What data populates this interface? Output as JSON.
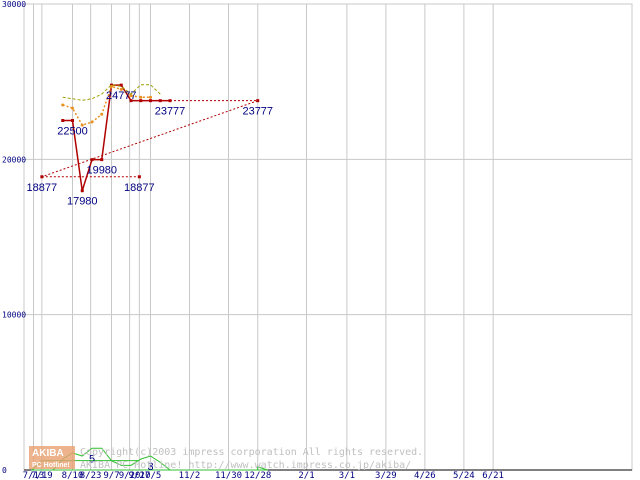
{
  "chart_data": {
    "type": "line",
    "title": "",
    "xlabel": "",
    "ylabel": "",
    "ylim": [
      0,
      30000
    ],
    "grid": true,
    "y_ticks": [
      "30000",
      "20000",
      "10000",
      "0"
    ],
    "x_ticks": [
      "7/13",
      "8/10",
      "9/7",
      "10/5",
      "11/2",
      "11/30",
      "12/28",
      "2/1",
      "3/1",
      "3/29",
      "4/26",
      "5/24",
      "6/21",
      "7/19",
      "8/23",
      "9/20",
      "9/27"
    ],
    "series": [
      {
        "role": "price",
        "color": "#b00000",
        "style": "solid-steps",
        "points": [
          {
            "x": "8/3",
            "y": 22500
          },
          {
            "x": "8/10",
            "y": 22500
          },
          {
            "x": "8/17",
            "y": 17980
          },
          {
            "x": "8/24",
            "y": 19980
          },
          {
            "x": "8/31",
            "y": 19980
          },
          {
            "x": "9/7",
            "y": 24777
          },
          {
            "x": "9/14",
            "y": 24777
          },
          {
            "x": "9/21",
            "y": 23777
          },
          {
            "x": "9/28",
            "y": 23777
          },
          {
            "x": "10/5",
            "y": 23777
          },
          {
            "x": "10/12",
            "y": 23777
          },
          {
            "x": "10/19",
            "y": 23777
          },
          {
            "x": "12/28",
            "y": 23777
          },
          {
            "x": "7/19",
            "y": 18877
          },
          {
            "x": "9/27",
            "y": 18877
          }
        ]
      },
      {
        "role": "average",
        "color": "#e89020",
        "style": "dotted",
        "points": [
          {
            "x": "8/3",
            "y": 23500
          },
          {
            "x": "8/10",
            "y": 23300
          },
          {
            "x": "8/17",
            "y": 22200
          },
          {
            "x": "8/24",
            "y": 22400
          },
          {
            "x": "8/31",
            "y": 22900
          },
          {
            "x": "9/7",
            "y": 24700
          },
          {
            "x": "9/14",
            "y": 24500
          },
          {
            "x": "9/21",
            "y": 24100
          },
          {
            "x": "9/28",
            "y": 24000
          },
          {
            "x": "10/5",
            "y": 24000
          }
        ]
      },
      {
        "role": "high",
        "color": "#a0a000",
        "style": "dashed",
        "points": [
          {
            "x": "8/3",
            "y": 24000
          },
          {
            "x": "8/10",
            "y": 23900
          },
          {
            "x": "8/17",
            "y": 23800
          },
          {
            "x": "8/24",
            "y": 23900
          },
          {
            "x": "8/31",
            "y": 24200
          },
          {
            "x": "9/7",
            "y": 24800
          },
          {
            "x": "9/14",
            "y": 24700
          },
          {
            "x": "9/21",
            "y": 24200
          },
          {
            "x": "9/28",
            "y": 24800
          },
          {
            "x": "10/5",
            "y": 24800
          },
          {
            "x": "10/12",
            "y": 24200
          }
        ]
      },
      {
        "role": "shop_count",
        "color": "#30c030",
        "style": "solid",
        "points": [
          {
            "x": "7/27",
            "y": 0
          },
          {
            "x": "8/3",
            "y": 700
          },
          {
            "x": "8/10",
            "y": 1100
          },
          {
            "x": "8/17",
            "y": 900
          },
          {
            "x": "8/24",
            "y": 1400
          },
          {
            "x": "8/31",
            "y": 1400
          },
          {
            "x": "9/7",
            "y": 600
          },
          {
            "x": "9/14",
            "y": 300
          },
          {
            "x": "9/21",
            "y": 300
          },
          {
            "x": "9/28",
            "y": 700
          },
          {
            "x": "10/5",
            "y": 900
          },
          {
            "x": "10/12",
            "y": 500
          },
          {
            "x": "10/19",
            "y": 0
          },
          {
            "x": "12/21",
            "y": 0
          },
          {
            "x": "12/28",
            "y": 200
          },
          {
            "x": "1/4",
            "y": 0
          },
          {
            "x": "7/12",
            "y": 0
          },
          {
            "x": "7/19",
            "y": 600
          },
          {
            "x": "9/27",
            "y": 600
          }
        ]
      }
    ],
    "data_labels": [
      {
        "text": "22500",
        "x": "8/10",
        "y": 22500
      },
      {
        "text": "17980",
        "x": "8/17",
        "y": 17980
      },
      {
        "text": "19980",
        "x": "8/31",
        "y": 19980
      },
      {
        "text": "24777",
        "x": "9/14",
        "y": 24777
      },
      {
        "text": "23777",
        "x": "10/19",
        "y": 23777
      },
      {
        "text": "23777",
        "x": "12/28",
        "y": 23777
      },
      {
        "text": "18877",
        "x": "7/19",
        "y": 18877
      },
      {
        "text": "18877",
        "x": "9/27",
        "y": 18877
      },
      {
        "text": "5",
        "x": "8/24",
        "y": 1400
      },
      {
        "text": "3",
        "x": "10/5",
        "y": 900
      }
    ]
  },
  "watermark": {
    "logo_top": "AKIBA",
    "logo_bottom": "PC Hotline!",
    "line1": "Copyright(c)2003 impress corporation All rights reserved.",
    "line2": "AKIBA PC Hotline!  http://www.watch.impress.co.jp/akiba/"
  }
}
